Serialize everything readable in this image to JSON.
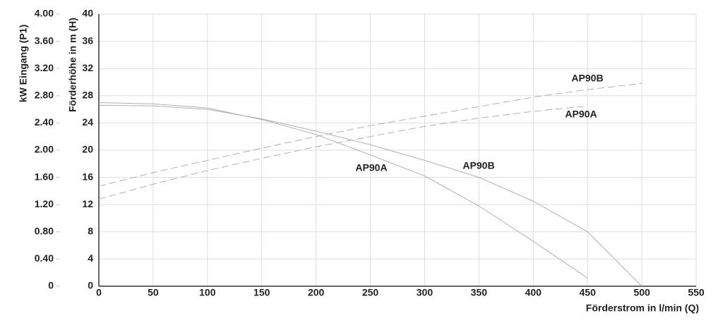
{
  "chart_data": {
    "type": "line",
    "y_label": "Förderhöhe in m (H)",
    "y2_label": "kW Eingang (P1)",
    "x_label": "Förderstrom in l/min (Q)",
    "x": [
      0,
      50,
      100,
      150,
      200,
      250,
      300,
      350,
      400,
      450,
      500
    ],
    "series": [
      {
        "name": "AP90A",
        "color": "#b0b0b0",
        "dashed": false,
        "values": [
          27,
          26.8,
          26.2,
          24.5,
          22.3,
          19.3,
          16.2,
          11.8,
          6.6,
          1.2,
          null
        ]
      },
      {
        "name": "AP90B",
        "color": "#b0b0b0",
        "dashed": false,
        "values": [
          26.6,
          26.5,
          26,
          24.6,
          22.8,
          20.8,
          18.5,
          16,
          12.5,
          8,
          0
        ]
      },
      {
        "name": "AP90A",
        "color": "#b0b0b0",
        "dashed": true,
        "axis": "y2",
        "values": [
          1.28,
          1.5,
          1.7,
          1.88,
          2.05,
          2.2,
          2.35,
          2.47,
          2.57,
          2.65,
          null
        ]
      },
      {
        "name": "AP90B",
        "color": "#b0b0b0",
        "dashed": true,
        "axis": "y2",
        "values": [
          1.47,
          1.67,
          1.85,
          2.03,
          2.2,
          2.36,
          2.5,
          2.64,
          2.78,
          2.89,
          2.98
        ]
      }
    ],
    "xlim": [
      0,
      550
    ],
    "xticks": [
      0,
      50,
      100,
      150,
      200,
      250,
      300,
      350,
      400,
      450,
      500,
      550
    ],
    "ylim": [
      0,
      40
    ],
    "yticks": [
      0,
      4,
      8,
      12,
      16,
      20,
      24,
      28,
      32,
      36,
      40
    ],
    "y2lim": [
      0,
      4
    ],
    "y2ticks": [
      0,
      {
        "value": 0.4,
        "label": "0.40"
      },
      {
        "value": 0.8,
        "label": "0.80"
      },
      {
        "value": 1.2,
        "label": "1.20"
      },
      {
        "value": 1.6,
        "label": "1.60"
      },
      {
        "value": 2,
        "label": "2.00"
      },
      {
        "value": 2.4,
        "label": "2.40"
      },
      {
        "value": 2.8,
        "label": "2.80"
      },
      {
        "value": 3.2,
        "label": "3.20"
      },
      {
        "value": 3.6,
        "label": "3.60"
      },
      {
        "value": 4,
        "label": "4.00"
      }
    ],
    "grid": true
  }
}
